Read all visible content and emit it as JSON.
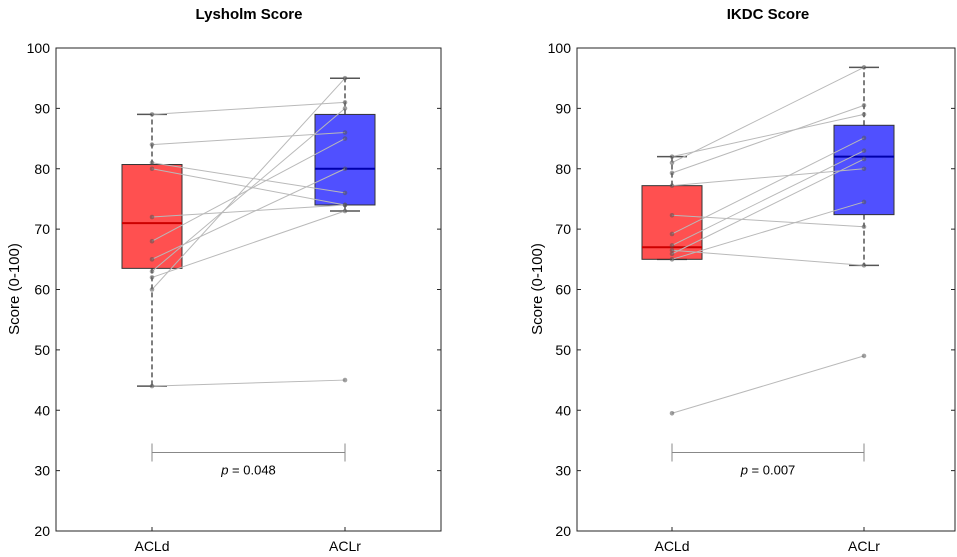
{
  "chart_data": [
    {
      "type": "boxplot",
      "title": "Lysholm Score",
      "ylabel": "Score (0-100)",
      "xlabel": "",
      "ylim": [
        20,
        100
      ],
      "yticks": [
        20,
        30,
        40,
        50,
        60,
        70,
        80,
        90,
        100
      ],
      "categories": [
        "ACLd",
        "ACLr"
      ],
      "boxes": [
        {
          "name": "ACLd",
          "color": "#ff2a2a",
          "median_color": "#cc0000",
          "q1": 63.5,
          "median": 71,
          "q3": 80.7,
          "whisker_low": 44,
          "whisker_high": 89
        },
        {
          "name": "ACLr",
          "color": "#2a2aff",
          "median_color": "#0000aa",
          "q1": 74,
          "median": 80,
          "q3": 89,
          "whisker_low": 73,
          "whisker_high": 95
        }
      ],
      "paired_points": [
        [
          89,
          91
        ],
        [
          84,
          86
        ],
        [
          81,
          76
        ],
        [
          80,
          74
        ],
        [
          72,
          74
        ],
        [
          68,
          85
        ],
        [
          65,
          80
        ],
        [
          63,
          90
        ],
        [
          62,
          73
        ],
        [
          60,
          95
        ],
        [
          44,
          45
        ]
      ],
      "outliers": [],
      "significance": {
        "label_italic": "p",
        "label_rest": " = 0.048"
      }
    },
    {
      "type": "boxplot",
      "title": "IKDC Score",
      "ylabel": "Score (0-100)",
      "xlabel": "",
      "ylim": [
        20,
        100
      ],
      "yticks": [
        20,
        30,
        40,
        50,
        60,
        70,
        80,
        90,
        100
      ],
      "categories": [
        "ACLd",
        "ACLr"
      ],
      "boxes": [
        {
          "name": "ACLd",
          "color": "#ff2a2a",
          "median_color": "#cc0000",
          "q1": 65,
          "median": 67,
          "q3": 77.2,
          "whisker_low": 65,
          "whisker_high": 82
        },
        {
          "name": "ACLr",
          "color": "#2a2aff",
          "median_color": "#0000aa",
          "q1": 72.4,
          "median": 82,
          "q3": 87.2,
          "whisker_low": 64,
          "whisker_high": 96.8
        }
      ],
      "paired_points": [
        [
          82,
          89
        ],
        [
          81,
          96.8
        ],
        [
          79.3,
          90.5
        ],
        [
          77.2,
          80
        ],
        [
          72.3,
          70.4
        ],
        [
          69.2,
          85.1
        ],
        [
          67.3,
          83
        ],
        [
          66.5,
          64
        ],
        [
          65.9,
          81.6
        ],
        [
          65,
          74.5
        ],
        [
          39.5,
          49
        ]
      ],
      "outliers": [],
      "significance": {
        "label_italic": "p",
        "label_rest": " = 0.007"
      }
    }
  ]
}
